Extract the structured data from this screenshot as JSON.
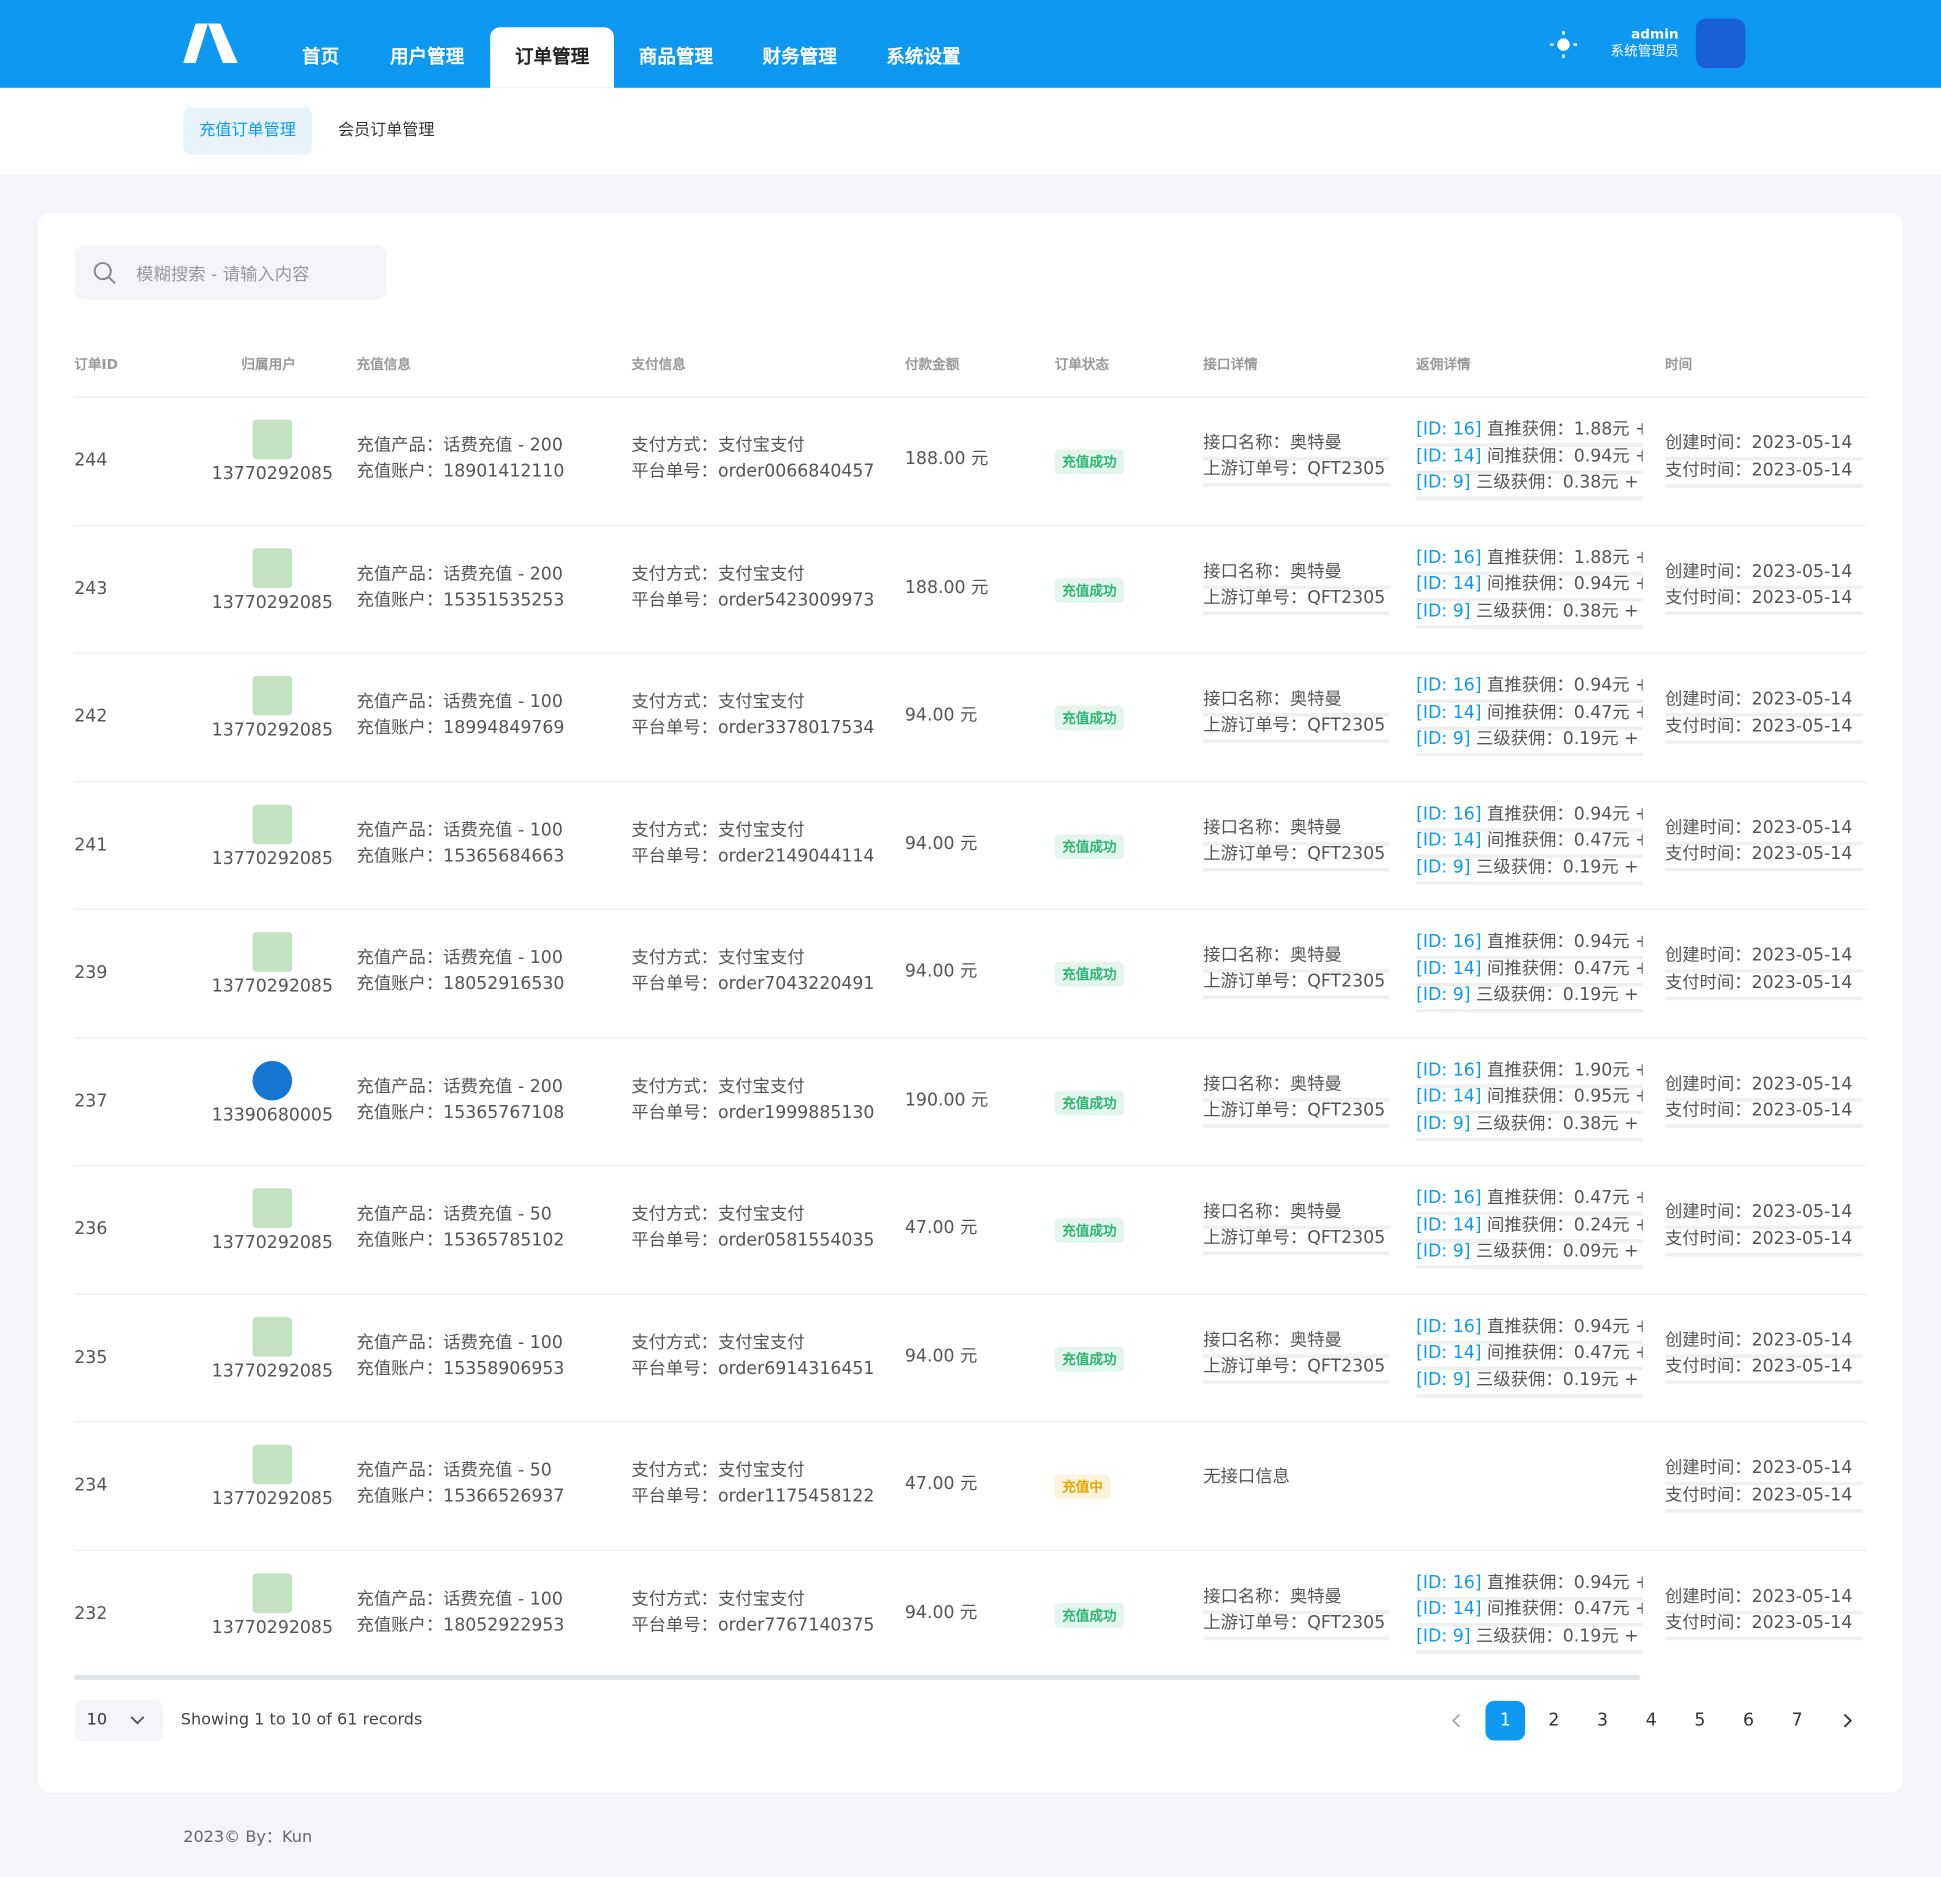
{
  "header": {
    "nav": [
      "首页",
      "用户管理",
      "订单管理",
      "商品管理",
      "财务管理",
      "系统设置"
    ],
    "active_nav": 2,
    "user_name": "admin",
    "user_role": "系统管理员"
  },
  "subnav": {
    "tabs": [
      "充值订单管理",
      "会员订单管理"
    ],
    "active_tab": 0
  },
  "search": {
    "placeholder": "模糊搜索 - 请输入内容"
  },
  "table": {
    "columns": [
      "订单ID",
      "归属用户",
      "充值信息",
      "支付信息",
      "付款金额",
      "订单状态",
      "接口详情",
      "返佣详情",
      "时间"
    ],
    "rows": [
      {
        "id": "244",
        "user": "13770292085",
        "avatar": "#9ccf9a",
        "product": "充值产品：话费充值 - 200",
        "account": "充值账户：18901412110",
        "pay_method": "支付方式：支付宝支付",
        "order_no": "平台单号：order0066840457",
        "amount": "188.00 元",
        "status": "充值成功",
        "status_color": "#2bb673",
        "api": [
          "接口名称：奥特曼",
          "上游订单号：QFT2305"
        ],
        "rebates": [
          "[ID: 16] 直推获佣：1.88元 +",
          "[ID: 14] 间推获佣：0.94元 +",
          "[ID: 9] 三级获佣：0.38元 +"
        ],
        "times": [
          "创建时间：2023-05-14",
          "支付时间：2023-05-14"
        ]
      },
      {
        "id": "243",
        "user": "13770292085",
        "avatar": "#9ccf9a",
        "product": "充值产品：话费充值 - 200",
        "account": "充值账户：15351535253",
        "pay_method": "支付方式：支付宝支付",
        "order_no": "平台单号：order5423009973",
        "amount": "188.00 元",
        "status": "充值成功",
        "status_color": "#2bb673",
        "api": [
          "接口名称：奥特曼",
          "上游订单号：QFT2305"
        ],
        "rebates": [
          "[ID: 16] 直推获佣：1.88元 +",
          "[ID: 14] 间推获佣：0.94元 +",
          "[ID: 9] 三级获佣：0.38元 +"
        ],
        "times": [
          "创建时间：2023-05-14",
          "支付时间：2023-05-14"
        ]
      },
      {
        "id": "242",
        "user": "13770292085",
        "avatar": "#9ccf9a",
        "product": "充值产品：话费充值 - 100",
        "account": "充值账户：18994849769",
        "pay_method": "支付方式：支付宝支付",
        "order_no": "平台单号：order3378017534",
        "amount": "94.00 元",
        "status": "充值成功",
        "status_color": "#2bb673",
        "api": [
          "接口名称：奥特曼",
          "上游订单号：QFT2305"
        ],
        "rebates": [
          "[ID: 16] 直推获佣：0.94元 +",
          "[ID: 14] 间推获佣：0.47元 +",
          "[ID: 9] 三级获佣：0.19元 +"
        ],
        "times": [
          "创建时间：2023-05-14",
          "支付时间：2023-05-14"
        ]
      },
      {
        "id": "241",
        "user": "13770292085",
        "avatar": "#9ccf9a",
        "product": "充值产品：话费充值 - 100",
        "account": "充值账户：15365684663",
        "pay_method": "支付方式：支付宝支付",
        "order_no": "平台单号：order2149044114",
        "amount": "94.00 元",
        "status": "充值成功",
        "status_color": "#2bb673",
        "api": [
          "接口名称：奥特曼",
          "上游订单号：QFT2305"
        ],
        "rebates": [
          "[ID: 16] 直推获佣：0.94元 +",
          "[ID: 14] 间推获佣：0.47元 +",
          "[ID: 9] 三级获佣：0.19元 +"
        ],
        "times": [
          "创建时间：2023-05-14",
          "支付时间：2023-05-14"
        ]
      },
      {
        "id": "239",
        "user": "13770292085",
        "avatar": "#9ccf9a",
        "product": "充值产品：话费充值 - 100",
        "account": "充值账户：18052916530",
        "pay_method": "支付方式：支付宝支付",
        "order_no": "平台单号：order7043220491",
        "amount": "94.00 元",
        "status": "充值成功",
        "status_color": "#2bb673",
        "api": [
          "接口名称：奥特曼",
          "上游订单号：QFT2305"
        ],
        "rebates": [
          "[ID: 16] 直推获佣：0.94元 +",
          "[ID: 14] 间推获佣：0.47元 +",
          "[ID: 9] 三级获佣：0.19元 +"
        ],
        "times": [
          "创建时间：2023-05-14",
          "支付时间：2023-05-14"
        ]
      },
      {
        "id": "237",
        "user": "13390680005",
        "avatar": "#1677d2",
        "product": "充值产品：话费充值 - 200",
        "account": "充值账户：15365767108",
        "pay_method": "支付方式：支付宝支付",
        "order_no": "平台单号：order1999885130",
        "amount": "190.00 元",
        "status": "充值成功",
        "status_color": "#2bb673",
        "api": [
          "接口名称：奥特曼",
          "上游订单号：QFT2305"
        ],
        "rebates": [
          "[ID: 16] 直推获佣：1.90元 +",
          "[ID: 14] 间推获佣：0.95元 +",
          "[ID: 9] 三级获佣：0.38元 +"
        ],
        "times": [
          "创建时间：2023-05-14",
          "支付时间：2023-05-14"
        ]
      },
      {
        "id": "236",
        "user": "13770292085",
        "avatar": "#9ccf9a",
        "product": "充值产品：话费充值 - 50",
        "account": "充值账户：15365785102",
        "pay_method": "支付方式：支付宝支付",
        "order_no": "平台单号：order0581554035",
        "amount": "47.00 元",
        "status": "充值成功",
        "status_color": "#2bb673",
        "api": [
          "接口名称：奥特曼",
          "上游订单号：QFT2305"
        ],
        "rebates": [
          "[ID: 16] 直推获佣：0.47元 +",
          "[ID: 14] 间推获佣：0.24元 +",
          "[ID: 9] 三级获佣：0.09元 +"
        ],
        "times": [
          "创建时间：2023-05-14",
          "支付时间：2023-05-14"
        ]
      },
      {
        "id": "235",
        "user": "13770292085",
        "avatar": "#9ccf9a",
        "product": "充值产品：话费充值 - 100",
        "account": "充值账户：15358906953",
        "pay_method": "支付方式：支付宝支付",
        "order_no": "平台单号：order6914316451",
        "amount": "94.00 元",
        "status": "充值成功",
        "status_color": "#2bb673",
        "api": [
          "接口名称：奥特曼",
          "上游订单号：QFT2305"
        ],
        "rebates": [
          "[ID: 16] 直推获佣：0.94元 +",
          "[ID: 14] 间推获佣：0.47元 +",
          "[ID: 9] 三级获佣：0.19元 +"
        ],
        "times": [
          "创建时间：2023-05-14",
          "支付时间：2023-05-14"
        ]
      },
      {
        "id": "234",
        "user": "13770292085",
        "avatar": "#9ccf9a",
        "product": "充值产品：话费充值 - 50",
        "account": "充值账户：15366526937",
        "pay_method": "支付方式：支付宝支付",
        "order_no": "平台单号：order1175458122",
        "amount": "47.00 元",
        "status": "充值中",
        "status_color": "#e6a700",
        "api": [
          "无接口信息"
        ],
        "rebates": [],
        "times": [
          "创建时间：2023-05-14",
          "支付时间：2023-05-14"
        ]
      },
      {
        "id": "232",
        "user": "13770292085",
        "avatar": "#9ccf9a",
        "product": "充值产品：话费充值 - 100",
        "account": "充值账户：18052922953",
        "pay_method": "支付方式：支付宝支付",
        "order_no": "平台单号：order7767140375",
        "amount": "94.00 元",
        "status": "充值成功",
        "status_color": "#2bb673",
        "api": [
          "接口名称：奥特曼",
          "上游订单号：QFT2305"
        ],
        "rebates": [
          "[ID: 16] 直推获佣：0.94元 +",
          "[ID: 14] 间推获佣：0.47元 +",
          "[ID: 9] 三级获佣：0.19元 +"
        ],
        "times": [
          "创建时间：2023-05-14",
          "支付时间：2023-05-14"
        ]
      }
    ]
  },
  "pagination": {
    "page_size": "10",
    "summary": "Showing 1 to 10 of 61 records",
    "pages": [
      "1",
      "2",
      "3",
      "4",
      "5",
      "6",
      "7"
    ],
    "active_page": 0
  },
  "footer": {
    "text": "2023© By：Kun"
  }
}
